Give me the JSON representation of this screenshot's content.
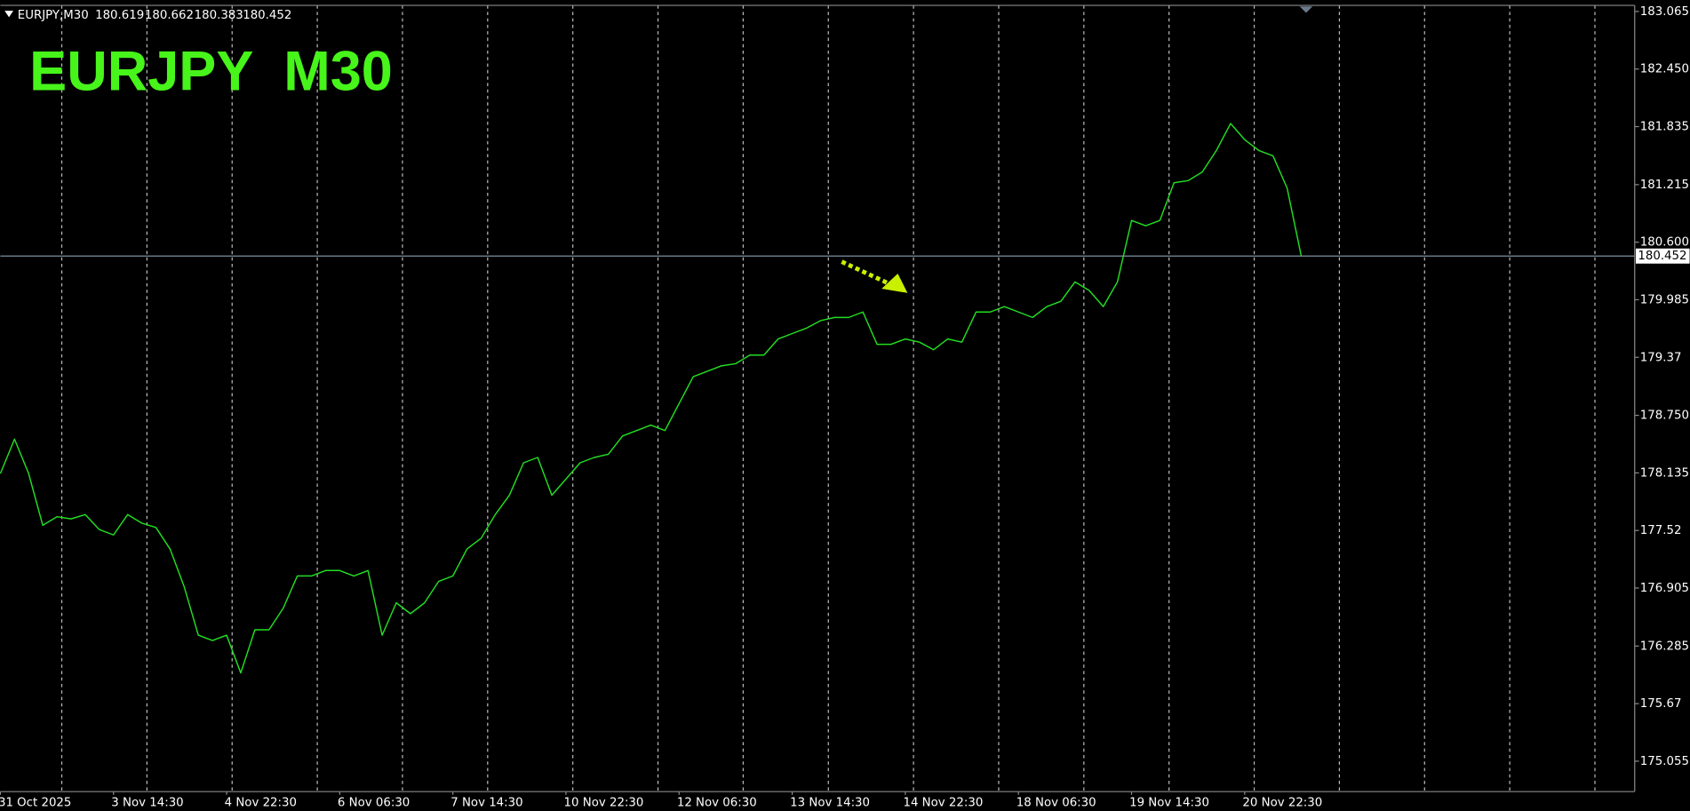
{
  "chart_data": {
    "type": "line",
    "title": "EURJPY  M30",
    "header": {
      "symbol": "EURJPY,M30",
      "ohlc": [
        180.619,
        180.662,
        180.383,
        180.452
      ]
    },
    "title_color": "#47f51a",
    "color": "#22dd22",
    "current_price": 180.452,
    "categories": [
      "31 Oct 2025",
      null,
      null,
      null,
      null,
      null,
      null,
      null,
      "3 Nov 14:30",
      null,
      null,
      null,
      null,
      null,
      null,
      null,
      "4 Nov 22:30",
      null,
      null,
      null,
      null,
      null,
      null,
      null,
      "6 Nov 06:30",
      null,
      null,
      null,
      null,
      null,
      null,
      null,
      "7 Nov 14:30",
      null,
      null,
      null,
      null,
      null,
      null,
      null,
      "10 Nov 22:30",
      null,
      null,
      null,
      null,
      null,
      null,
      null,
      "12 Nov 06:30",
      null,
      null,
      null,
      null,
      null,
      null,
      null,
      "13 Nov 14:30",
      null,
      null,
      null,
      null,
      null,
      null,
      null,
      "14 Nov 22:30",
      null,
      null,
      null,
      null,
      null,
      null,
      null,
      "18 Nov 06:30",
      null,
      null,
      null,
      null,
      null,
      null,
      null,
      "19 Nov 14:30",
      null,
      null,
      null,
      null,
      null,
      null,
      null,
      "20 Nov 22:30",
      null,
      null,
      null,
      null
    ],
    "values": [
      178.128,
      178.496,
      178.128,
      177.575,
      177.667,
      177.644,
      177.69,
      177.529,
      177.472,
      177.69,
      177.598,
      177.552,
      177.322,
      176.919,
      176.401,
      176.344,
      176.401,
      175.998,
      176.459,
      176.459,
      176.689,
      177.034,
      177.034,
      177.092,
      177.092,
      177.034,
      177.092,
      176.401,
      176.747,
      176.631,
      176.747,
      176.977,
      177.034,
      177.322,
      177.437,
      177.69,
      177.897,
      178.243,
      178.3,
      177.897,
      178.07,
      178.243,
      178.3,
      178.335,
      178.53,
      178.588,
      178.646,
      178.588,
      178.876,
      179.163,
      179.221,
      179.279,
      179.302,
      179.394,
      179.394,
      179.566,
      179.624,
      179.681,
      179.762,
      179.796,
      179.796,
      179.854,
      179.509,
      179.509,
      179.566,
      179.532,
      179.451,
      179.566,
      179.532,
      179.854,
      179.854,
      179.912,
      179.854,
      179.796,
      179.912,
      179.969,
      180.176,
      180.084,
      179.912,
      180.176,
      180.832,
      180.775,
      180.832,
      181.235,
      181.258,
      181.35,
      181.58,
      181.868,
      181.695,
      181.58,
      181.523,
      181.178,
      180.452
    ],
    "ylim": [
      174.73,
      183.13
    ],
    "yticks": [
      183.065,
      {
        "value": 182.45,
        "label": "182.450"
      },
      181.835,
      181.215,
      {
        "value": 180.6,
        "label": "180.600"
      },
      179.985,
      179.37,
      {
        "value": 178.75,
        "label": "178.750"
      },
      178.135,
      177.52,
      176.905,
      176.285,
      175.67,
      175.055
    ]
  }
}
